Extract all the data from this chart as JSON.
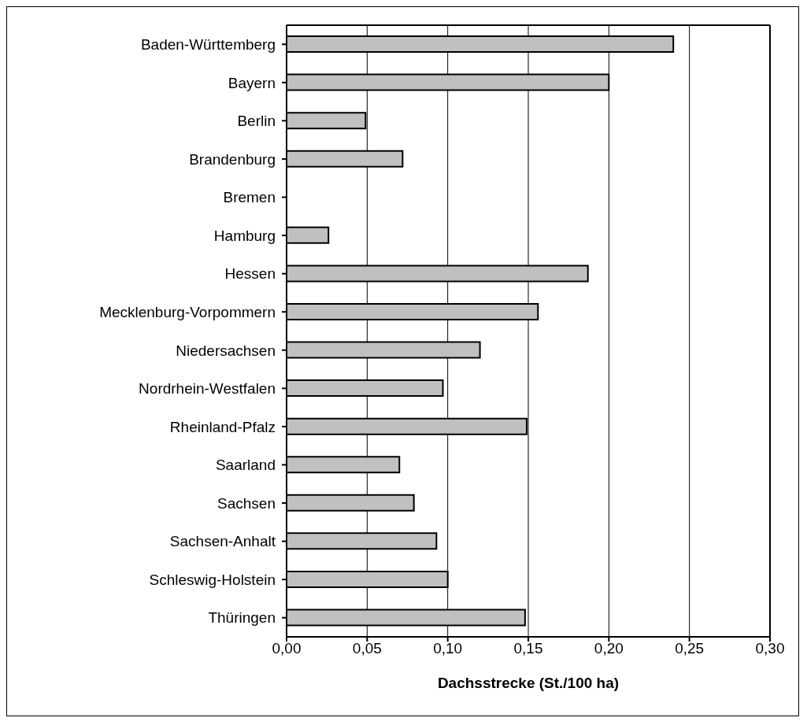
{
  "chart_data": {
    "type": "bar",
    "orientation": "horizontal",
    "xlabel": "Dachsstrecke (St./100 ha)",
    "categories": [
      "Baden-Württemberg",
      "Bayern",
      "Berlin",
      "Brandenburg",
      "Bremen",
      "Hamburg",
      "Hessen",
      "Mecklenburg-Vorpommern",
      "Niedersachsen",
      "Nordrhein-Westfalen",
      "Rheinland-Pfalz",
      "Saarland",
      "Sachsen",
      "Sachsen-Anhalt",
      "Schleswig-Holstein",
      "Thüringen"
    ],
    "values": [
      0.24,
      0.2,
      0.049,
      0.072,
      null,
      0.026,
      0.187,
      0.156,
      0.12,
      0.097,
      0.149,
      0.07,
      0.079,
      0.093,
      0.1,
      0.148
    ],
    "color": "#c0c0c0",
    "xlim": [
      0,
      0.3
    ],
    "xticks": [
      {
        "value": 0,
        "label": "0,00"
      },
      {
        "value": 0.05,
        "label": "0,05"
      },
      {
        "value": 0.1,
        "label": "0,10"
      },
      {
        "value": 0.15,
        "label": "0,15"
      },
      {
        "value": 0.2,
        "label": "0,20"
      },
      {
        "value": 0.25,
        "label": "0,25"
      },
      {
        "value": 0.3,
        "label": "0,30"
      }
    ],
    "grid": "x"
  }
}
